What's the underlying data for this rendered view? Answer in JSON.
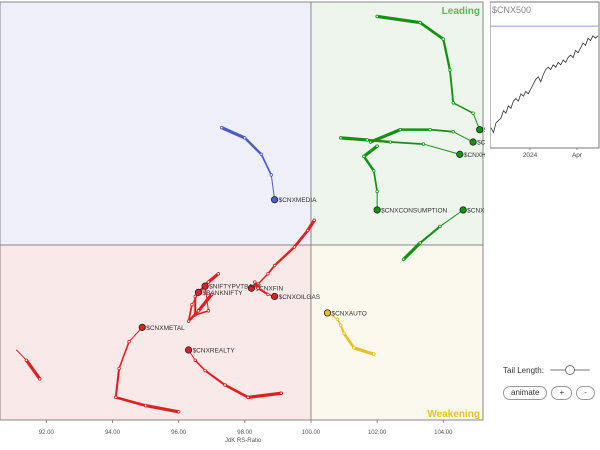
{
  "chart_data": {
    "type": "scatter",
    "title": "",
    "xlabel": "JdK RS-Ratio",
    "ylabel": "",
    "xlim": [
      90.6,
      105.2
    ],
    "ylim": [
      91.5,
      111.8
    ],
    "center": [
      100,
      100
    ],
    "x_ticks": [
      "92.00",
      "94.00",
      "96.00",
      "98.00",
      "100.00",
      "102.00",
      "104.00"
    ],
    "x_tick_values": [
      92,
      94,
      96,
      98,
      100,
      102,
      104
    ],
    "quadrants": [
      {
        "name": "Leading",
        "label": "Leading",
        "color": "#5cb85c",
        "fill": "#eef5ec"
      },
      {
        "name": "Weakening",
        "label": "Weakening",
        "color": "#e8c020",
        "fill": "#fbf9ee"
      },
      {
        "name": "Lagging",
        "label": "",
        "color": "#d9534f",
        "fill": "#f9e9e9"
      },
      {
        "name": "Improving",
        "label": "",
        "color": "#6f7fc8",
        "fill": "#eeeff9"
      }
    ],
    "series": [
      {
        "name": "$CNXMEDIA",
        "label": "$CNXMEDIA",
        "color": "#4a5fc4",
        "points": [
          [
            97.3,
            105.7
          ],
          [
            98.0,
            105.2
          ],
          [
            98.5,
            104.4
          ],
          [
            98.8,
            103.4
          ],
          [
            98.9,
            102.2
          ]
        ]
      },
      {
        "name": "$CNXIT",
        "label": "$CNXIT",
        "color": "#119311",
        "points": [
          [
            102.0,
            111.1
          ],
          [
            103.3,
            110.8
          ],
          [
            104.0,
            110.0
          ],
          [
            104.2,
            108.5
          ],
          [
            104.3,
            106.9
          ],
          [
            104.9,
            106.4
          ],
          [
            105.1,
            105.6
          ]
        ]
      },
      {
        "name": "$CNXPHARMA",
        "label": "$CNXPHARMA",
        "color": "#119311",
        "points": [
          [
            101.8,
            105.0
          ],
          [
            102.7,
            105.6
          ],
          [
            103.6,
            105.6
          ],
          [
            104.3,
            105.5
          ],
          [
            104.9,
            105.0
          ]
        ]
      },
      {
        "name": "$CNXHEALTHCARE",
        "label": "$CNXHEALTHCARE",
        "color": "#119311",
        "points": [
          [
            100.9,
            105.2
          ],
          [
            101.7,
            105.1
          ],
          [
            102.4,
            105.0
          ],
          [
            103.4,
            104.9
          ],
          [
            104.5,
            104.4
          ]
        ]
      },
      {
        "name": "$CNXCONSUMPTION",
        "label": "$CNXCONSUMPTION",
        "color": "#119311",
        "points": [
          [
            102.0,
            104.8
          ],
          [
            101.6,
            104.3
          ],
          [
            101.9,
            103.6
          ],
          [
            102.0,
            102.6
          ],
          [
            102.0,
            101.7
          ]
        ]
      },
      {
        "name": "$CNXCONSUMERDURABLES",
        "label": "$CNXCONSUMERDURABLES",
        "color": "#119311",
        "points": [
          [
            102.8,
            99.3
          ],
          [
            103.3,
            100.1
          ],
          [
            103.9,
            100.9
          ],
          [
            104.6,
            101.7
          ]
        ]
      },
      {
        "name": "$CNXFIN",
        "label": "$CNXFIN",
        "color": "#e02020",
        "points": [
          [
            100.1,
            101.2
          ],
          [
            99.9,
            100.7
          ],
          [
            99.5,
            99.9
          ],
          [
            98.9,
            99.0
          ],
          [
            98.7,
            98.6
          ],
          [
            98.4,
            98.1
          ],
          [
            98.2,
            97.9
          ]
        ]
      },
      {
        "name": "$NIFTYPVTBANK",
        "label": "$NIFTYPVTBANK",
        "color": "#e02020",
        "points": [
          [
            97.2,
            98.6
          ],
          [
            96.9,
            98.2
          ],
          [
            96.5,
            97.5
          ],
          [
            96.5,
            96.6
          ],
          [
            96.9,
            96.8
          ],
          [
            96.8,
            98.0
          ]
        ]
      },
      {
        "name": "$BANKNIFTY",
        "label": "$BANKNIFTY",
        "color": "#e02020",
        "points": [
          [
            97.0,
            97.6
          ],
          [
            96.6,
            96.8
          ],
          [
            96.3,
            96.3
          ],
          [
            96.4,
            97.1
          ],
          [
            96.6,
            97.7
          ]
        ]
      },
      {
        "name": "$CNXOILGAS",
        "label": "$CNXOILGAS",
        "color": "#e02020",
        "points": [
          [
            98.3,
            98.2
          ],
          [
            98.4,
            97.9
          ],
          [
            98.7,
            97.6
          ],
          [
            98.9,
            97.5
          ]
        ]
      },
      {
        "name": "$CNXMETAL",
        "label": "$CNXMETAL",
        "color": "#e02020",
        "points": [
          [
            96.0,
            91.9
          ],
          [
            95.0,
            92.2
          ],
          [
            94.1,
            92.6
          ],
          [
            94.2,
            94.0
          ],
          [
            94.5,
            95.3
          ],
          [
            94.9,
            96.0
          ]
        ]
      },
      {
        "name": "$CNXREALTY",
        "label": "$CNXREALTY",
        "color": "#e02020",
        "points": [
          [
            99.1,
            92.8
          ],
          [
            98.1,
            92.6
          ],
          [
            97.4,
            93.2
          ],
          [
            96.8,
            93.9
          ],
          [
            96.5,
            94.4
          ],
          [
            96.3,
            94.9
          ]
        ]
      },
      {
        "name": "$CNXAUTO",
        "label": "$CNXAUTO",
        "color": "#e8c020",
        "points": [
          [
            101.9,
            94.7
          ],
          [
            101.3,
            95.0
          ],
          [
            101.0,
            95.7
          ],
          [
            100.9,
            96.1
          ],
          [
            100.8,
            96.4
          ],
          [
            100.5,
            96.7
          ]
        ]
      },
      {
        "name": "",
        "label": "",
        "color": "#e02020",
        "points": [
          [
            91.8,
            93.5
          ],
          [
            91.4,
            94.4
          ],
          [
            91.1,
            94.9
          ]
        ]
      }
    ],
    "grid": false,
    "legend": "none"
  },
  "mini_chart": {
    "title": "$CNX500",
    "x_ticks": [
      "2024",
      "Apr"
    ],
    "line_color": "#333333",
    "ref_line_color": "#7777dd",
    "values": [
      58,
      56,
      60,
      61,
      62,
      65,
      64,
      67,
      66,
      69,
      70,
      69,
      72,
      71,
      73,
      72,
      74,
      76,
      78,
      79,
      77,
      80,
      82,
      83,
      82,
      84,
      83,
      85,
      84,
      86,
      85,
      87,
      88,
      87,
      90,
      89,
      91,
      93,
      92,
      95,
      94,
      96,
      95,
      96
    ],
    "ref_value": 100,
    "y_range": [
      50,
      105
    ]
  },
  "controls": {
    "tail_length_label": "Tail Length:",
    "tail_length": 0.5,
    "animate_label": "animate",
    "plus_label": "+",
    "minus_label": "-"
  }
}
